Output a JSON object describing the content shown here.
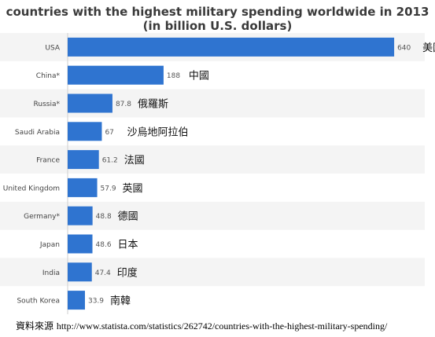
{
  "chart_data": {
    "type": "bar",
    "orientation": "horizontal",
    "title": "countries with the highest military spending worldwide in 2013",
    "subtitle": "(in billion U.S. dollars)",
    "categories": [
      "USA",
      "China*",
      "Russia*",
      "Saudi Arabia",
      "France",
      "United Kingdom",
      "Germany*",
      "Japan",
      "India",
      "South Korea"
    ],
    "values": [
      640,
      188,
      87.8,
      67,
      61.2,
      57.9,
      48.8,
      48.6,
      47.4,
      33.9
    ],
    "value_labels": [
      "640",
      "188",
      "87.8",
      "67",
      "61.2",
      "57.9",
      "48.8",
      "48.6",
      "47.4",
      "33.9"
    ],
    "annotations": [
      "美國",
      "中國",
      "俄羅斯",
      "沙烏地阿拉伯",
      "法國",
      "英國",
      "德國",
      "日本",
      "印度",
      "南韓"
    ],
    "xlim": [
      0,
      700
    ],
    "grid": false,
    "bar_color": "#2f74d0",
    "stripe_color": "#f4f4f4"
  },
  "source": {
    "label": "資料來源",
    "url": "http://www.statista.com/statistics/262742/countries-with-the-highest-military-spending/"
  }
}
